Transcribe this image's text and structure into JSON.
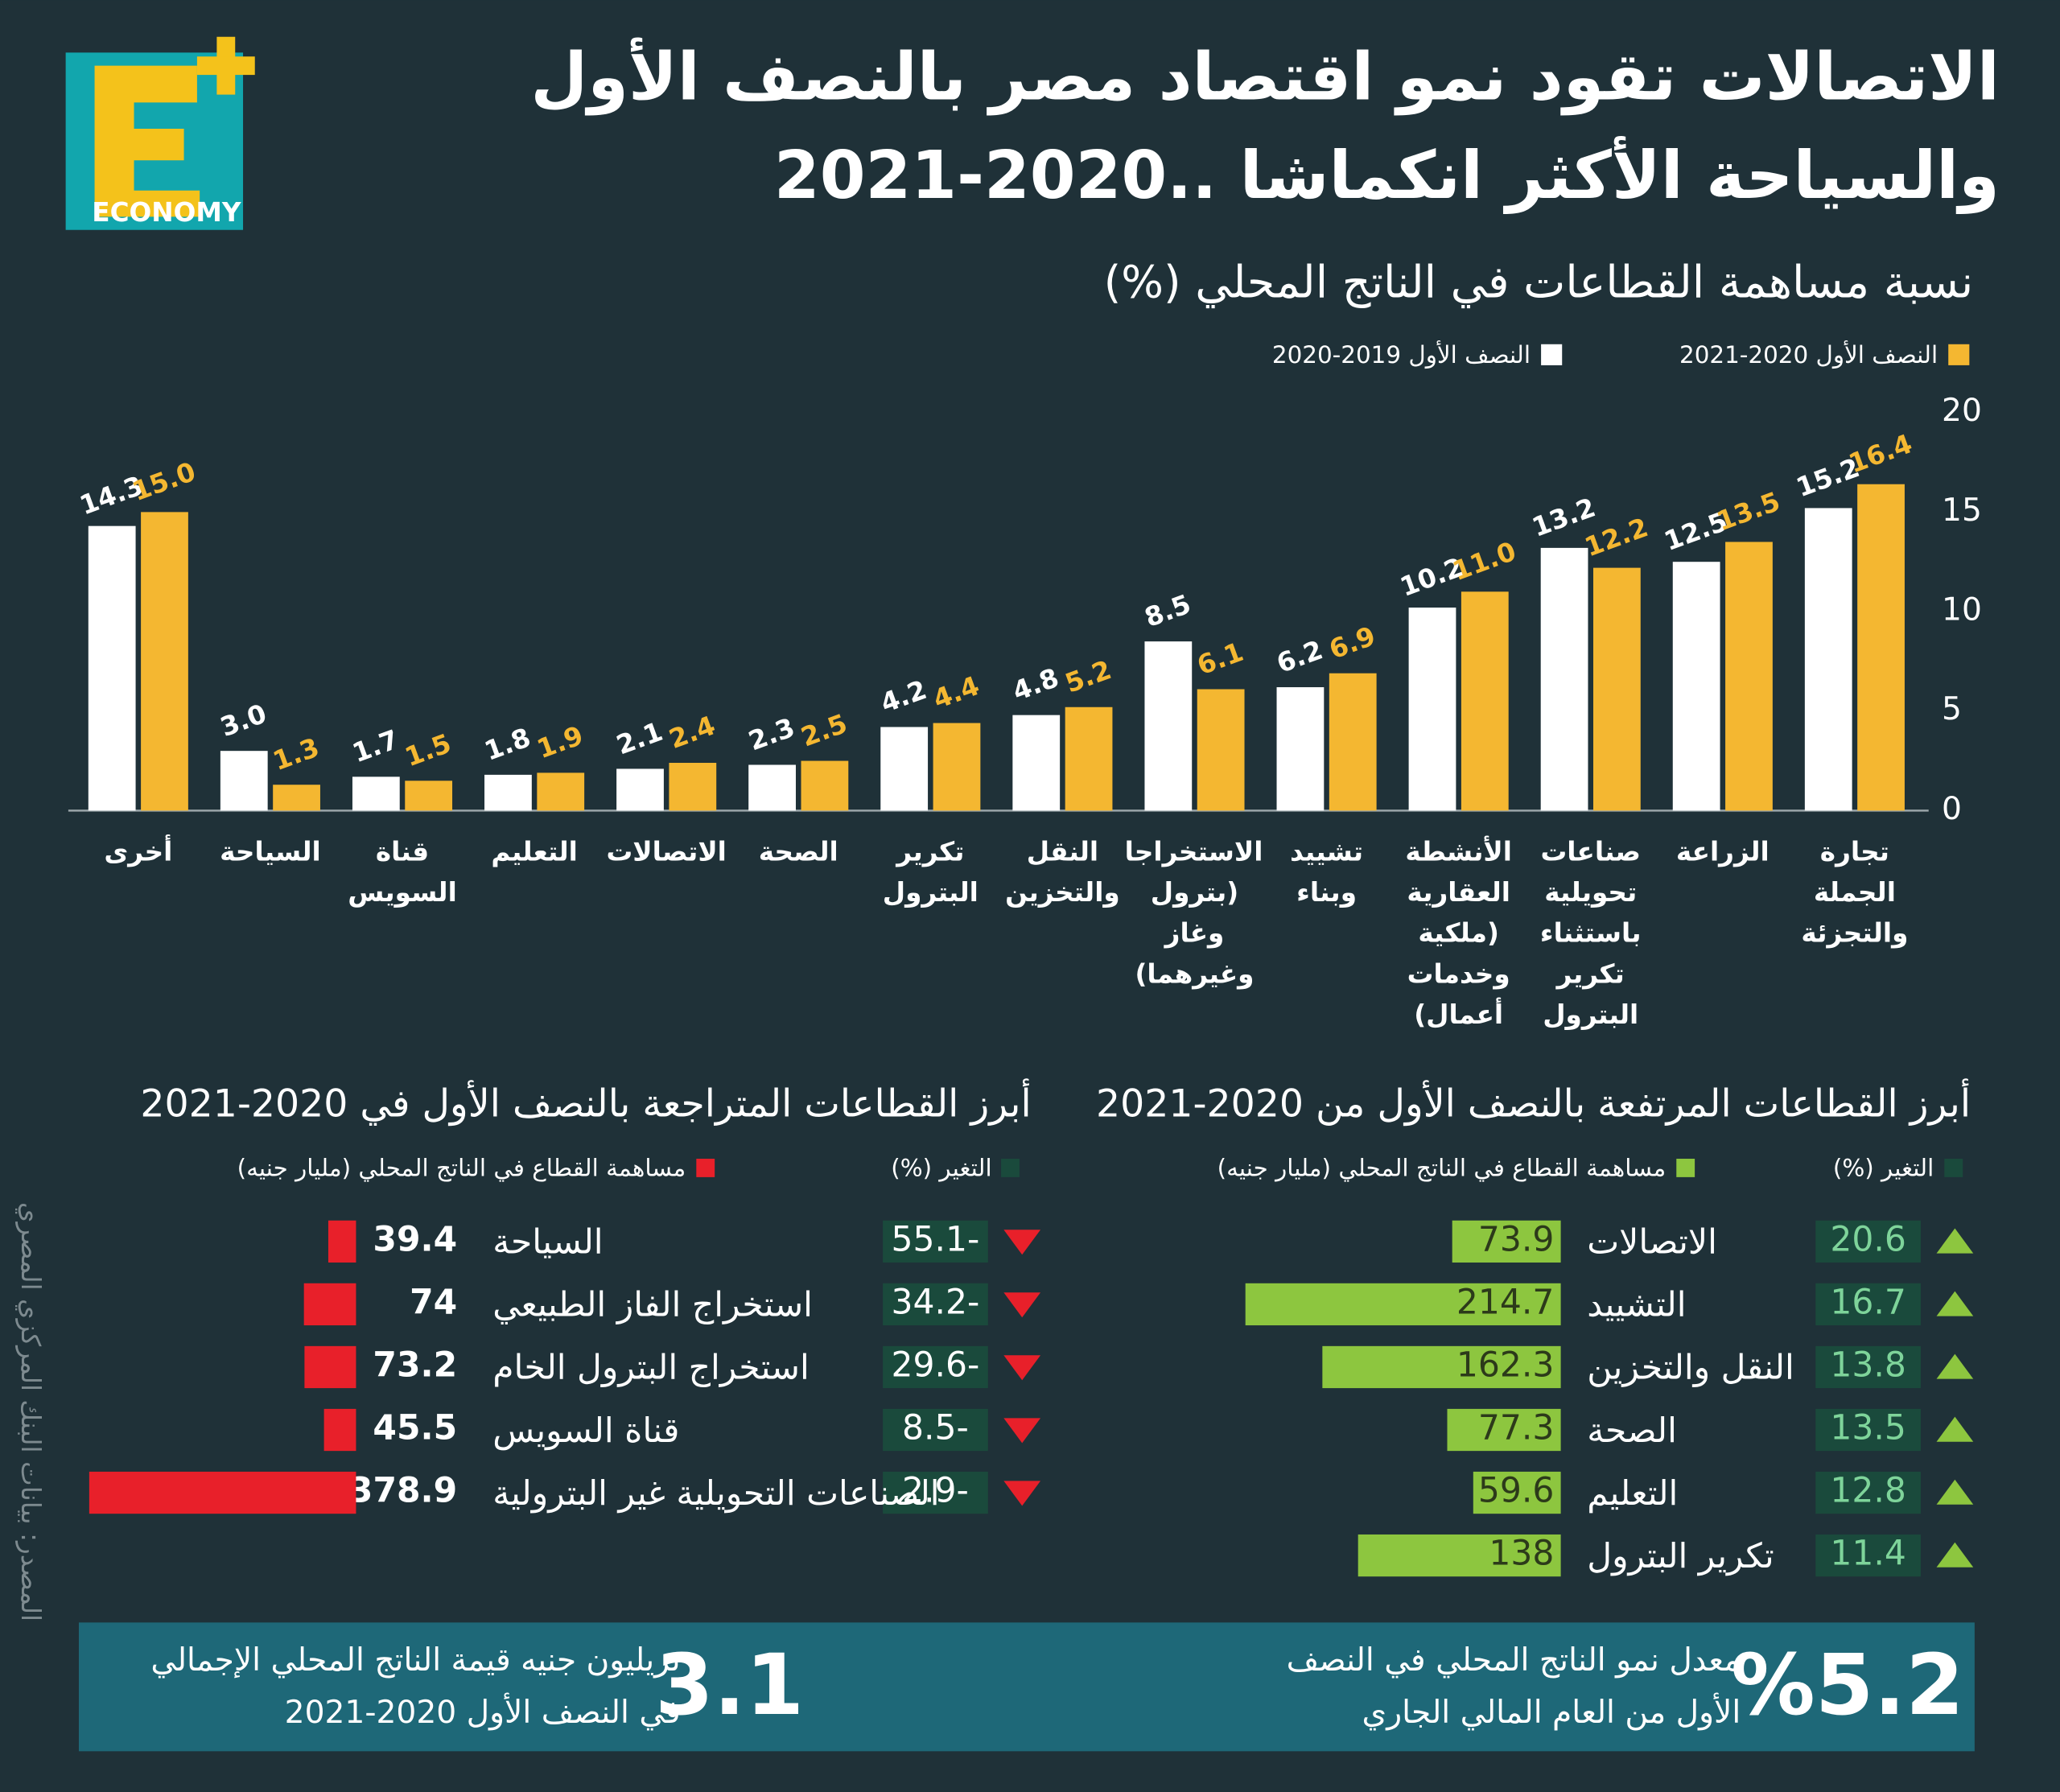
{
  "header": {
    "title_line1": "الاتصالات تقود نمو اقتصاد مصر بالنصف الأول",
    "title_line2": "والسياحة الأكثر انكماشا ..2020-2021",
    "logo": "ECONOMY"
  },
  "chart_data": [
    {
      "type": "bar",
      "title": "نسبة مساهمة القطاعات في الناتج المحلي (%)",
      "categories": [
        "تجارة الجملة والتجزئة",
        "الزراعة",
        "صناعات تحويلية باستثناء تكرير البترول",
        "الأنشطة العقارية (ملكية وخدمات أعمال)",
        "تشييد وبناء",
        "الاستخراجات (بترول وغاز وغيرهما)",
        "النقل والتخزين",
        "تكرير البترول",
        "الصحة",
        "الاتصالات",
        "التعليم",
        "قناة السويس",
        "السياحة",
        "أخرى"
      ],
      "series": [
        {
          "name": "النصف الأول 2019-2020",
          "color": "#ffffff",
          "values": [
            15.2,
            12.5,
            13.2,
            10.2,
            6.2,
            8.5,
            4.8,
            4.2,
            2.3,
            2.1,
            1.8,
            1.7,
            3.0,
            14.3
          ],
          "value_labels": [
            "15.2",
            "12.5",
            "13.2",
            "10.2",
            "6.2",
            "8.5",
            "4.8",
            "4.2",
            "2.3",
            "2.1",
            "1.8",
            "1.7",
            "3.0",
            "14.3"
          ]
        },
        {
          "name": "النصف الأول 2020-2021",
          "color": "#f4b731",
          "values": [
            16.4,
            13.5,
            12.2,
            11.0,
            6.9,
            6.1,
            5.2,
            4.4,
            2.5,
            2.4,
            1.9,
            1.5,
            1.3,
            15.0
          ],
          "value_labels": [
            "16.4",
            "13.5",
            "12.2",
            "11.0",
            "6.9",
            "6.1",
            "5.2",
            "4.4",
            "2.5",
            "2.4",
            "1.9",
            "1.5",
            "1.3",
            "15.0"
          ]
        }
      ],
      "ylim": [
        0,
        20
      ],
      "yticks": [
        0,
        5,
        10,
        15,
        20
      ]
    },
    {
      "type": "rising",
      "title": "أبرز القطاعات المرتفعة بالنصف الأول من 2020-2021",
      "categories": [
        "الاتصالات",
        "التشييد",
        "النقل والتخزين",
        "الصحة",
        "التعليم",
        "تكرير البترول"
      ],
      "series": [
        {
          "name": "التغير (%)",
          "color": "#1a4a3c",
          "values": [
            20.6,
            16.7,
            13.8,
            13.5,
            12.8,
            11.4
          ]
        },
        {
          "name": "مساهمة القطاع في الناتج المحلي (مليار جنيه)",
          "color": "#8dc63f",
          "values": [
            73.9,
            214.7,
            162.3,
            77.3,
            59.6,
            138
          ]
        }
      ]
    },
    {
      "type": "falling",
      "title": "أبرز القطاعات المتراجعة بالنصف الأول في 2020-2021",
      "categories": [
        "السياحة",
        "استخراج الفاز الطبيعي",
        "استخراج البترول الخام",
        "قناة السويس",
        "الصناعات التحويلية غير البترولية"
      ],
      "series": [
        {
          "name": "التغير (%)",
          "color": "#1a4a3c",
          "values": [
            -55.1,
            -34.2,
            -29.6,
            -8.5,
            -2.9
          ],
          "value_labels": [
            "55.1-",
            "34.2-",
            "29.6-",
            "8.5-",
            "2.9-"
          ]
        },
        {
          "name": "مساهمة القطاع في الناتج المحلي (مليار جنيه)",
          "color": "#e8202a",
          "values": [
            39.4,
            74,
            73.2,
            45.5,
            378.9
          ]
        }
      ]
    }
  ],
  "footer": {
    "growth_value": "%5.2",
    "growth_line1": "معدل نمو الناتج المحلي في النصف",
    "growth_line2": "الأول من العام المالي الجاري",
    "gdp_value": "3.1",
    "gdp_line1": "تريليون جنيه قيمة الناتج المحلي الإجمالي",
    "gdp_line2": "في النصف الأول 2020-2021"
  },
  "source": "المصدر: بيانات البنك المركزي المصري"
}
